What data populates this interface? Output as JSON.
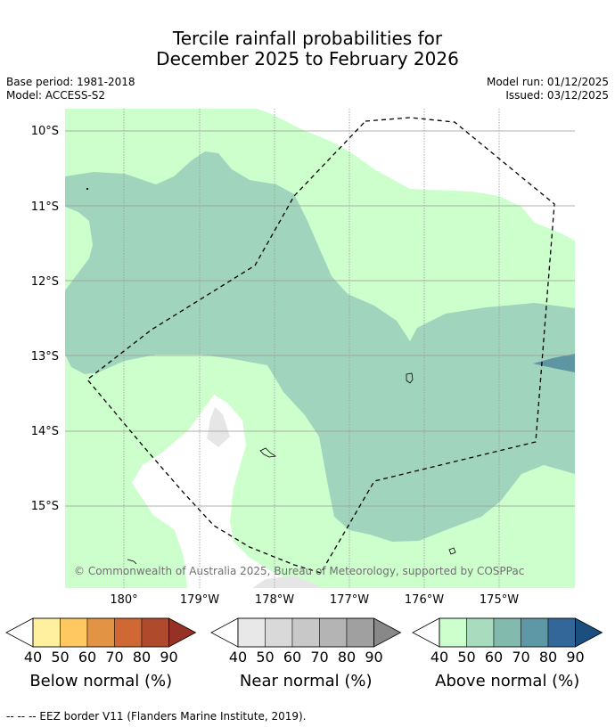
{
  "title": {
    "line1": "Tercile rainfall probabilities for",
    "line2": "December 2025 to February 2026"
  },
  "info": {
    "base_period": "Base period: 1981-2018",
    "model": "Model: ACCESS-S2",
    "model_run": "Model run: 01/12/2025",
    "issued": "Issued: 03/12/2025"
  },
  "map": {
    "lat_labels": [
      "10°S",
      "11°S",
      "12°S",
      "13°S",
      "14°S",
      "15°S"
    ],
    "lon_labels": [
      "180°",
      "179°W",
      "178°W",
      "177°W",
      "176°W",
      "175°W"
    ],
    "copyright": "© Commonwealth of Australia 2025, Bureau of Meteorology, supported by COSPPac",
    "colors": {
      "above_40": "#ccffcc",
      "above_50": "#a1d4bd",
      "above_60": "#7db8ab",
      "above_70": "#5d95a3",
      "near_50": "#e6e6e6",
      "eez_line": "#000000",
      "grid": "#999999"
    }
  },
  "colorbars": [
    {
      "label": "Below normal (%)",
      "ticks": [
        "40",
        "50",
        "60",
        "70",
        "80",
        "90"
      ],
      "colors": [
        "#fff0a0",
        "#ffc860",
        "#e29444",
        "#cf6834",
        "#b04a2c",
        "#963225"
      ]
    },
    {
      "label": "Near normal (%)",
      "ticks": [
        "40",
        "50",
        "60",
        "70",
        "80",
        "90"
      ],
      "colors": [
        "#e8e8e8",
        "#d9d9d9",
        "#c8c8c8",
        "#b4b4b4",
        "#a0a0a0",
        "#888888"
      ]
    },
    {
      "label": "Above normal (%)",
      "ticks": [
        "40",
        "50",
        "60",
        "70",
        "80",
        "90"
      ],
      "colors": [
        "#ccffcc",
        "#a9dbbf",
        "#82bbad",
        "#5e97a6",
        "#336699",
        "#1a4f80"
      ]
    }
  ],
  "footer": "--  --  -- EEZ border V11 (Flanders Marine Institute, 2019)."
}
